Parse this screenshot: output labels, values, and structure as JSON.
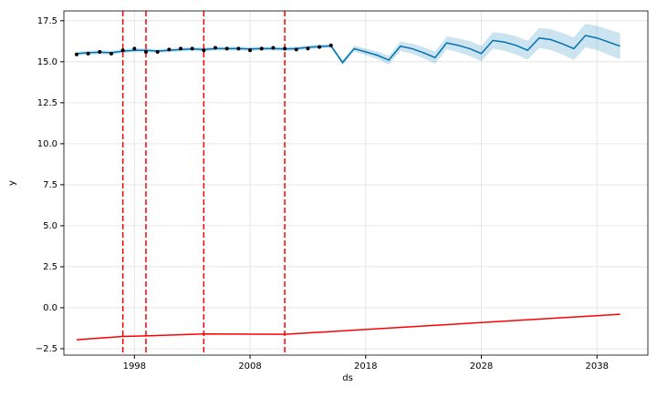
{
  "chart_data": {
    "type": "line",
    "xlabel": "ds",
    "ylabel": "y",
    "xlim": [
      1991.9,
      2042.4
    ],
    "ylim": [
      -2.89,
      18.1
    ],
    "xticks": [
      1998,
      2008,
      2018,
      2028,
      2038
    ],
    "yticks": [
      {
        "value": -2.5,
        "label": "−2.5"
      },
      {
        "value": 0,
        "label": "0.0"
      },
      2.5,
      {
        "value": 5,
        "label": "5.0"
      },
      7.5,
      {
        "value": 10,
        "label": "10.0"
      },
      12.5,
      {
        "value": 15,
        "label": "15.0"
      },
      17.5
    ],
    "grid": true,
    "observed": {
      "color": "#000000",
      "x": [
        1993,
        1994,
        1995,
        1996,
        1997,
        1998,
        1999,
        2000,
        2001,
        2002,
        2003,
        2004,
        2005,
        2006,
        2007,
        2008,
        2009,
        2010,
        2011,
        2012,
        2013,
        2014,
        2015
      ],
      "values": [
        15.45,
        15.5,
        15.6,
        15.5,
        15.7,
        15.8,
        15.6,
        15.6,
        15.75,
        15.8,
        15.8,
        15.7,
        15.85,
        15.8,
        15.8,
        15.7,
        15.8,
        15.85,
        15.8,
        15.75,
        15.8,
        15.9,
        16.0
      ]
    },
    "forecast": {
      "color": "#0072B2",
      "band_color": "#0072B2",
      "x": [
        1993,
        1994,
        1995,
        1996,
        1997,
        1998,
        1999,
        2000,
        2001,
        2002,
        2003,
        2004,
        2005,
        2006,
        2007,
        2008,
        2009,
        2010,
        2011,
        2012,
        2013,
        2014,
        2015,
        2016,
        2017,
        2018,
        2019,
        2020,
        2021,
        2022,
        2023,
        2024,
        2025,
        2026,
        2027,
        2028,
        2029,
        2030,
        2031,
        2032,
        2033,
        2034,
        2035,
        2036,
        2037,
        2038,
        2039,
        2040
      ],
      "values": [
        15.5,
        15.55,
        15.58,
        15.55,
        15.65,
        15.7,
        15.7,
        15.65,
        15.7,
        15.75,
        15.78,
        15.75,
        15.8,
        15.8,
        15.8,
        15.78,
        15.8,
        15.8,
        15.78,
        15.8,
        15.88,
        15.93,
        15.97,
        14.95,
        15.8,
        15.6,
        15.4,
        15.1,
        15.95,
        15.8,
        15.55,
        15.25,
        16.15,
        16.0,
        15.8,
        15.5,
        16.3,
        16.2,
        16.0,
        15.7,
        16.45,
        16.35,
        16.1,
        15.8,
        16.6,
        16.45,
        16.2,
        15.95
      ],
      "lower": [
        15.38,
        15.43,
        15.46,
        15.43,
        15.53,
        15.58,
        15.58,
        15.53,
        15.58,
        15.63,
        15.66,
        15.63,
        15.68,
        15.68,
        15.68,
        15.66,
        15.68,
        15.68,
        15.66,
        15.68,
        15.76,
        15.81,
        15.85,
        14.8,
        15.62,
        15.4,
        15.17,
        14.84,
        15.66,
        15.49,
        15.21,
        14.88,
        15.76,
        15.58,
        15.35,
        15.03,
        15.8,
        15.67,
        15.44,
        15.12,
        15.84,
        15.71,
        15.44,
        15.11,
        15.88,
        15.71,
        15.43,
        15.15
      ],
      "upper": [
        15.62,
        15.67,
        15.7,
        15.67,
        15.77,
        15.82,
        15.82,
        15.77,
        15.82,
        15.87,
        15.9,
        15.87,
        15.92,
        15.92,
        15.92,
        15.9,
        15.92,
        15.92,
        15.9,
        15.92,
        16.0,
        16.05,
        16.09,
        15.1,
        15.98,
        15.8,
        15.63,
        15.36,
        16.24,
        16.11,
        15.89,
        15.62,
        16.54,
        16.42,
        16.25,
        15.97,
        16.8,
        16.73,
        16.56,
        16.28,
        17.06,
        16.99,
        16.76,
        16.49,
        17.32,
        17.19,
        16.97,
        16.75
      ]
    },
    "trend": {
      "color": "#ff0000",
      "x": [
        1993,
        1997,
        1999,
        2004,
        2011,
        2040
      ],
      "values": [
        -1.95,
        -1.75,
        -1.72,
        -1.6,
        -1.62,
        -0.4
      ]
    },
    "changepoints": {
      "color": "#ff0000",
      "x": [
        1997,
        1999,
        2004,
        2011
      ]
    }
  }
}
